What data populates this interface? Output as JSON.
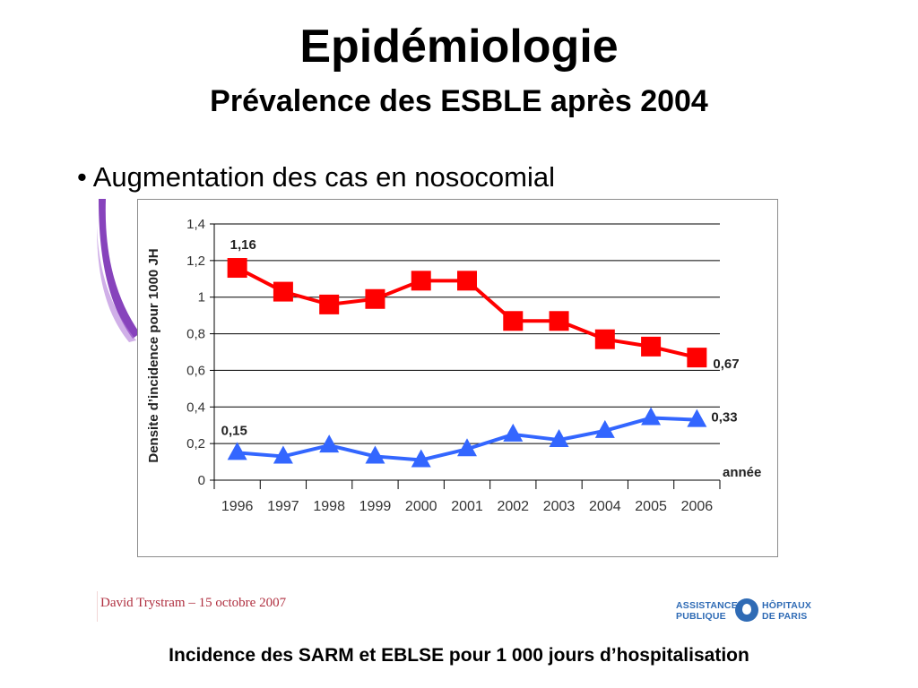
{
  "slide": {
    "title": "Epidémiologie",
    "subtitle": "Prévalence des ESBLE après 2004",
    "bullet": "• Augmentation des cas en nosocomial",
    "caption": "Incidence des SARM et EBLSE pour 1 000 jours d’hospitalisation"
  },
  "footer": {
    "author": "David Trystram – 15 octobre 2007",
    "logo_left_line1": "ASSISTANCE",
    "logo_left_line2": "PUBLIQUE",
    "logo_right_line1": "HÔPITAUX",
    "logo_right_line2": "DE PARIS"
  },
  "chart_data": {
    "type": "line",
    "ylabel": "Densite d’incidence pour 1000 JH",
    "xlabel": "année",
    "ylim": [
      0,
      1.4
    ],
    "yticks": [
      "0",
      "0,2",
      "0,4",
      "0,6",
      "0,8",
      "1",
      "1,2",
      "1,4"
    ],
    "grid": true,
    "categories": [
      "1996",
      "1997",
      "1998",
      "1999",
      "2000",
      "2001",
      "2002",
      "2003",
      "2004",
      "2005",
      "2006"
    ],
    "series": [
      {
        "color": "#ff0000",
        "marker": "square",
        "values": [
          1.16,
          1.03,
          0.96,
          0.99,
          1.09,
          1.09,
          0.87,
          0.87,
          0.77,
          0.73,
          0.67
        ]
      },
      {
        "color": "#3366ff",
        "marker": "triangle",
        "values": [
          0.15,
          0.13,
          0.19,
          0.13,
          0.11,
          0.17,
          0.25,
          0.22,
          0.27,
          0.34,
          0.33
        ]
      }
    ],
    "annotations": [
      "1,16",
      "0,67",
      "0,15",
      "0,33"
    ]
  }
}
